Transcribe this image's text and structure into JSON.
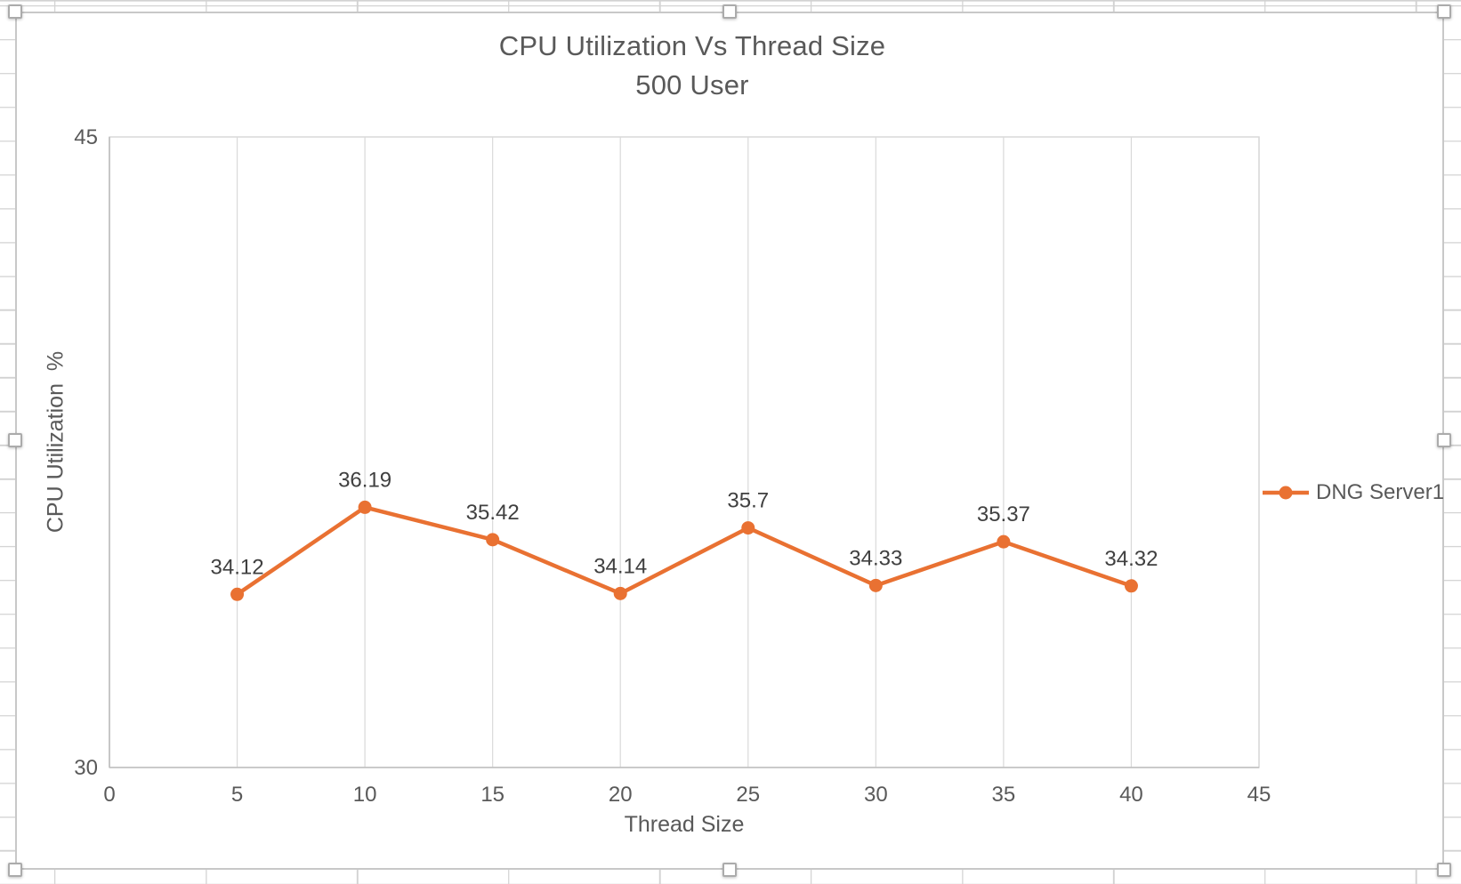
{
  "chart": {
    "title": "CPU Utilization Vs Thread Size",
    "subtitle": "500 User",
    "x_axis_title": "Thread Size",
    "y_axis_title": "CPU Utilization  %",
    "legend_label": "DNG Server1"
  },
  "chart_data": {
    "type": "line",
    "title": "CPU Utilization Vs Thread Size",
    "subtitle": "500 User",
    "xlabel": "Thread Size",
    "ylabel": "CPU Utilization %",
    "xlim": [
      0,
      45
    ],
    "ylim": [
      30,
      45
    ],
    "x_ticks": [
      0,
      5,
      10,
      15,
      20,
      25,
      30,
      35,
      40,
      45
    ],
    "y_tick_labels": [
      {
        "value": 45,
        "label": "45"
      },
      {
        "value": 30,
        "label": "30"
      }
    ],
    "gridlines": "vertical-major-only",
    "legend_position": "right",
    "series": [
      {
        "name": "DNG Server1",
        "color": "#E97132",
        "x": [
          5,
          10,
          15,
          20,
          25,
          30,
          35,
          40
        ],
        "y": [
          34.12,
          36.19,
          35.42,
          34.14,
          35.7,
          34.33,
          35.37,
          34.32
        ],
        "labels": [
          "34.12",
          "36.19",
          "35.42",
          "34.14",
          "35.7",
          "34.33",
          "35.37",
          "34.32"
        ]
      }
    ]
  },
  "colors": {
    "series_orange": "#E97132",
    "title_text": "#595959",
    "tick_text": "#595959",
    "data_label_text": "#404040",
    "gridline": "#D9D9D9",
    "plot_border": "#D9D9D9",
    "axis_line": "#BFBFBF"
  }
}
